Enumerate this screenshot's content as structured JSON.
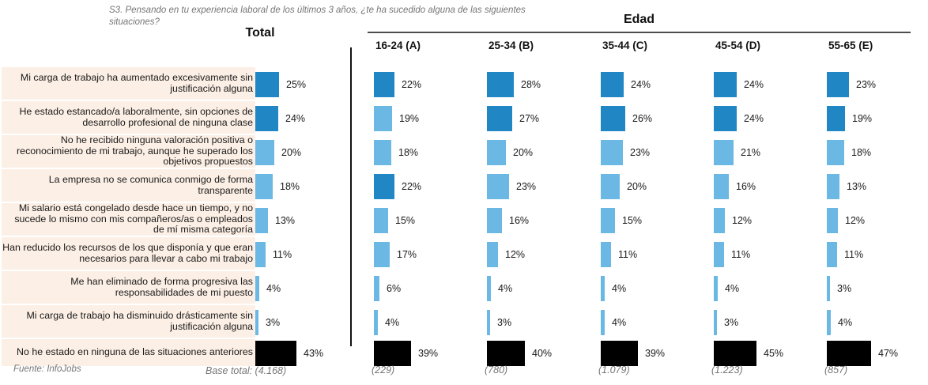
{
  "title": "S3. Pensando en tu experiencia laboral de los últimos 3 años, ¿te ha sucedido alguna de las siguientes situaciones?",
  "header": {
    "total_label": "Total",
    "group_label": "Edad"
  },
  "footer": {
    "fuente": "Fuente: InfoJobs",
    "base_total": "Base total: (4.168)"
  },
  "colors": {
    "dark_blue": "#2186c4",
    "light_blue": "#6cb8e4",
    "black": "#000000",
    "row_background": "#fcefe5"
  },
  "chart_data": {
    "type": "bar",
    "title": "S3. Pensando en tu experiencia laboral de los últimos 3 años, ¿te ha sucedido alguna de las siguientes situaciones?",
    "group_header": "Edad",
    "categories": [
      "Total",
      "16-24 (A)",
      "25-34 (B)",
      "35-44 (C)",
      "45-54 (D)",
      "55-65 (E)"
    ],
    "bases": [
      "(4.168)",
      "(229)",
      "(780)",
      "(1.079)",
      "(1.223)",
      "(857)"
    ],
    "unit": "%",
    "rows": [
      {
        "label": "Mi carga de trabajo ha aumentado excesivamente sin justificación alguna",
        "values": [
          25,
          22,
          28,
          24,
          24,
          23
        ],
        "colors": [
          "dark",
          "dark",
          "dark",
          "dark",
          "dark",
          "dark"
        ]
      },
      {
        "label": "He estado estancado/a laboralmente, sin opciones de desarrollo profesional de ninguna clase",
        "values": [
          24,
          19,
          27,
          26,
          24,
          19
        ],
        "colors": [
          "dark",
          "light",
          "dark",
          "dark",
          "dark",
          "dark"
        ]
      },
      {
        "label": "No he recibido ninguna valoración positiva o reconocimiento de mi trabajo, aunque he superado los objetivos propuestos",
        "values": [
          20,
          18,
          20,
          23,
          21,
          18
        ],
        "colors": [
          "light",
          "light",
          "light",
          "light",
          "light",
          "light"
        ]
      },
      {
        "label": "La empresa no se comunica conmigo de forma transparente",
        "values": [
          18,
          22,
          23,
          20,
          16,
          13
        ],
        "colors": [
          "light",
          "dark",
          "light",
          "light",
          "light",
          "light"
        ]
      },
      {
        "label": "Mi salario está congelado desde hace un tiempo, y no sucede lo mismo con mis compañeros/as o empleados de mí misma categoría",
        "values": [
          13,
          15,
          16,
          15,
          12,
          12
        ],
        "colors": [
          "light",
          "light",
          "light",
          "light",
          "light",
          "light"
        ]
      },
      {
        "label": "Han reducido los recursos de los que disponía y que eran necesarios para llevar a cabo mi trabajo",
        "values": [
          11,
          17,
          12,
          11,
          11,
          11
        ],
        "colors": [
          "light",
          "light",
          "light",
          "light",
          "light",
          "light"
        ]
      },
      {
        "label": "Me han eliminado de forma progresiva las responsabilidades de mi puesto",
        "values": [
          4,
          6,
          4,
          4,
          4,
          3
        ],
        "colors": [
          "light",
          "light",
          "light",
          "light",
          "light",
          "light"
        ]
      },
      {
        "label": "Mi carga de trabajo ha disminuido drásticamente sin justificación alguna",
        "values": [
          3,
          4,
          3,
          4,
          3,
          4
        ],
        "colors": [
          "light",
          "light",
          "light",
          "light",
          "light",
          "light"
        ]
      },
      {
        "label": "No he estado en ninguna de las situaciones anteriores",
        "values": [
          43,
          39,
          40,
          39,
          45,
          47
        ],
        "colors": [
          "black",
          "black",
          "black",
          "black",
          "black",
          "black"
        ]
      }
    ]
  }
}
